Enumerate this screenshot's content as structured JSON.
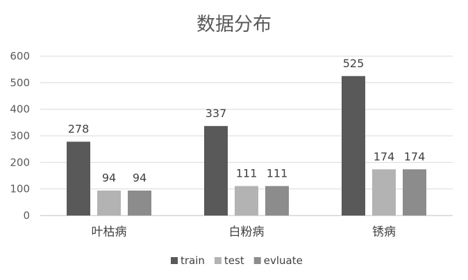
{
  "chart_data": {
    "type": "bar",
    "title": "数据分布",
    "categories": [
      "叶枯病",
      "白粉病",
      "锈病"
    ],
    "series": [
      {
        "name": "train",
        "values": [
          278,
          337,
          525
        ],
        "color": "#595959"
      },
      {
        "name": "test",
        "values": [
          94,
          111,
          174
        ],
        "color": "#b3b3b3"
      },
      {
        "name": "evluate",
        "values": [
          94,
          111,
          174
        ],
        "color": "#8c8c8c"
      }
    ],
    "ylim": [
      0,
      600
    ],
    "yticks": [
      0,
      100,
      200,
      300,
      400,
      500,
      600
    ],
    "grid": true,
    "legend": "bottom",
    "data_labels": true
  }
}
